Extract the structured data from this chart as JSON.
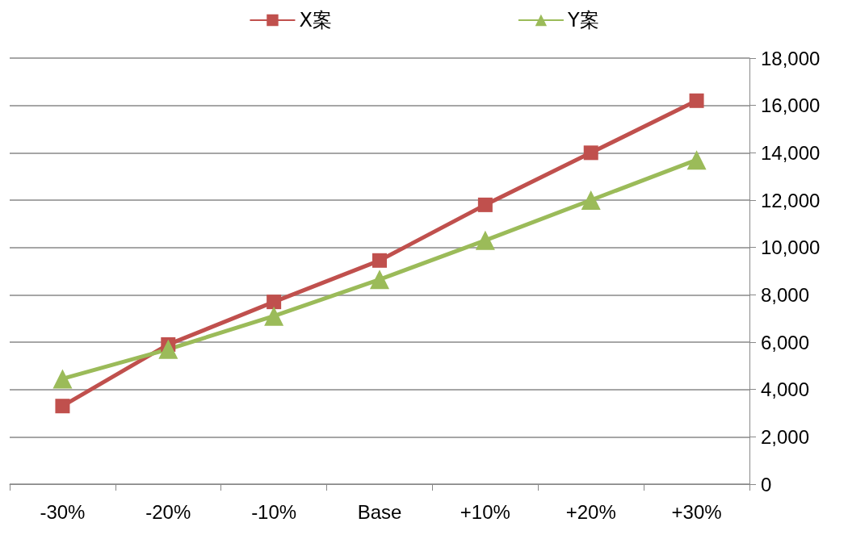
{
  "chart_data": {
    "type": "line",
    "categories": [
      "-30%",
      "-20%",
      "-10%",
      "Base",
      "+10%",
      "+20%",
      "+30%"
    ],
    "series": [
      {
        "name": "X案",
        "color": "#c0504d",
        "marker": "square",
        "values": [
          3300,
          5900,
          7700,
          9450,
          11800,
          14000,
          16200
        ]
      },
      {
        "name": "Y案",
        "color": "#9bbb59",
        "marker": "triangle",
        "values": [
          4450,
          5700,
          7100,
          8650,
          10300,
          12000,
          13700
        ]
      }
    ],
    "ylim": [
      0,
      18000
    ],
    "yticks": [
      0,
      {
        "value": 2000,
        "label": "2,000"
      },
      {
        "value": 4000,
        "label": "4,000"
      },
      {
        "value": 6000,
        "label": "6,000"
      },
      {
        "value": 8000,
        "label": "8,000"
      },
      {
        "value": 10000,
        "label": "10,000"
      },
      {
        "value": 12000,
        "label": "12,000"
      },
      {
        "value": 14000,
        "label": "14,000"
      },
      {
        "value": 16000,
        "label": "16,000"
      },
      {
        "value": 18000,
        "label": "18,000"
      }
    ],
    "grid": "y",
    "legend": "top",
    "line_style": "solid"
  }
}
